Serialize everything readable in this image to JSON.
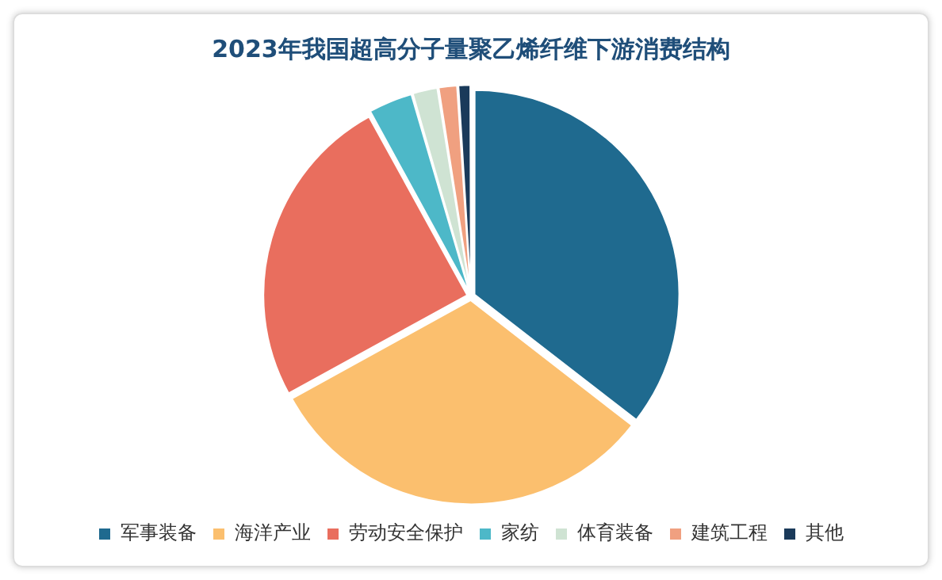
{
  "chart_data": {
    "type": "pie",
    "title": "2023年我国超高分子量聚乙烯纤维下游消费结构",
    "categories": [
      "军事装备",
      "海洋产业",
      "劳动安全保护",
      "家纺",
      "体育装备",
      "建筑工程",
      "其他"
    ],
    "values": [
      35.5,
      31.5,
      25,
      3.5,
      2,
      1.5,
      1
    ],
    "colors": [
      "#1f6a8f",
      "#fbbf6e",
      "#e96e5e",
      "#4db8c8",
      "#cfe3d3",
      "#f0a080",
      "#1a3a5a"
    ],
    "legend": "bottom"
  }
}
